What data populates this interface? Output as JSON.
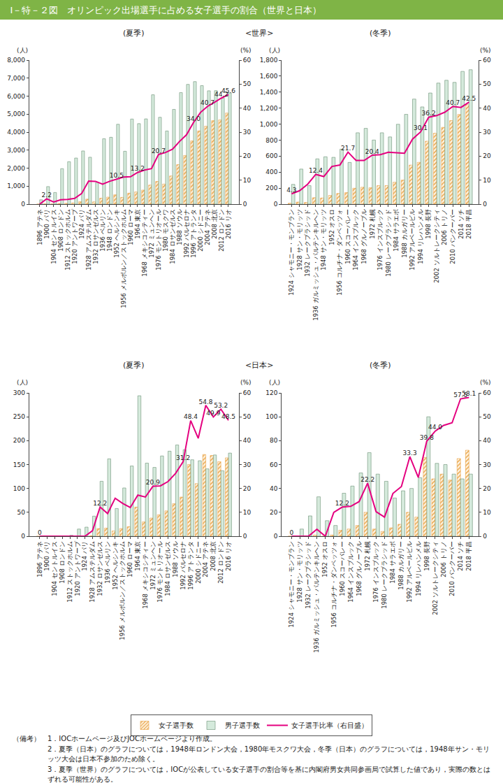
{
  "title": "Ⅰ－特－２図　オリンピック出場選手に占める女子選手の割合（世界と日本）",
  "section_labels": [
    "<世界>",
    "<日本>"
  ],
  "notes_label": "（備考）",
  "notes": [
    "1．IOCホームページ及びJOCホームページより作成。",
    "2．夏季（日本）のグラフについては，1948年ロンドン大会，1980年モスクワ大会，冬季（日本）のグラフについては，1948年サン・モリッツ大会は日本不参加のため除く。",
    "3．夏季（世界）のグラフについては，IOCが公表している女子選手の割合等を基に内閣府男女共同参画局で試算した値であり，実際の数とはずれる可能性がある。"
  ],
  "chart_data": [
    {
      "type": "bar",
      "title": "(夏季)",
      "y_label": "(人)",
      "y2_label": "(%)",
      "categories": [
        "1896 アテネ",
        "1900 パリ",
        "1904 セントルイス",
        "1908 ロンドン",
        "1912 ストックホルム",
        "1920 アントワープ",
        "1924 パリ",
        "1928 アムステルダム",
        "1932 ロサンゼルス",
        "1936 ベルリン",
        "1948 ロンドン",
        "1952 ヘルシンキ",
        "1956 メルボルン／ストックホルム",
        "1960 ローマ",
        "1964 東京",
        "1968 メキシコシティー",
        "1972 ミュンヘン",
        "1976 モントリオール",
        "1980 モスクワ",
        "1984 ロサンゼルス",
        "1988 ソウル",
        "1992 バルセロナ",
        "1996 アトランタ",
        "2000 シドニー",
        "2004 アテネ",
        "2008 北京",
        "2012 ロンドン",
        "2016 リオ"
      ],
      "series": [
        {
          "name": "女子選手数",
          "type": "bar",
          "color": "#e8a040",
          "marker": "hatched",
          "values": [
            0,
            22,
            6,
            37,
            48,
            65,
            135,
            277,
            126,
            331,
            390,
            519,
            376,
            611,
            678,
            781,
            1059,
            1260,
            1115,
            1566,
            2194,
            2704,
            3512,
            4069,
            4329,
            4637,
            4676,
            5059
          ]
        },
        {
          "name": "男子選手数",
          "type": "bar",
          "color": "#d5eadc",
          "values": [
            241,
            975,
            645,
            1971,
            2359,
            2561,
            2954,
            2606,
            1206,
            3632,
            3714,
            4436,
            2938,
            4727,
            4473,
            4735,
            6075,
            4824,
            4064,
            5263,
            6197,
            6652,
            6806,
            6582,
            6296,
            6305,
            5892,
            6178
          ]
        },
        {
          "name": "女子選手比率（右目盛）",
          "type": "line",
          "axis": "y2",
          "color": "#e4007f",
          "line_style": "solid",
          "values": [
            0,
            2.2,
            0.9,
            1.8,
            2.0,
            2.4,
            4.4,
            9.6,
            9.5,
            8.3,
            9.5,
            10.5,
            11.3,
            11.4,
            13.2,
            14.2,
            14.8,
            20.7,
            21.5,
            22.9,
            26.1,
            28.9,
            34.0,
            38.2,
            40.7,
            42.4,
            44.2,
            45.6
          ],
          "value_labels": [
            null,
            "2.2",
            null,
            null,
            null,
            null,
            null,
            null,
            null,
            null,
            null,
            "10.5",
            null,
            null,
            "13.2",
            null,
            null,
            "20.7",
            null,
            null,
            null,
            null,
            "34.0",
            null,
            "40.7",
            null,
            "44.2",
            "45.6"
          ]
        }
      ],
      "ylim": [
        0,
        8000
      ],
      "yticks": [
        0,
        {
          "value": 1000,
          "label": "1,000"
        },
        {
          "value": 2000,
          "label": "2,000"
        },
        {
          "value": 3000,
          "label": "3,000"
        },
        {
          "value": 4000,
          "label": "4,000"
        },
        {
          "value": 5000,
          "label": "5,000"
        },
        {
          "value": 6000,
          "label": "6,000"
        },
        {
          "value": 7000,
          "label": "7,000"
        },
        {
          "value": 8000,
          "label": "8,000"
        }
      ],
      "y2lim": [
        0,
        60
      ],
      "y2ticks": [
        0,
        10,
        20,
        30,
        40,
        50,
        60
      ],
      "grid": false,
      "data_labels": true,
      "legend": "bottom"
    },
    {
      "type": "bar",
      "title": "(冬季)",
      "y_label": "(人)",
      "y2_label": "(%)",
      "categories": [
        "1924 シャモニー・モンブラン",
        "1928 サン・モリッツ",
        "1932 レークプラシッド",
        "1936 ガルミッシュ・パルテンキルヘン",
        "1948 サン・モリッツ",
        "1952 オスロ",
        "1956 コルチナ・ダンペッツォ",
        "1960 スコーバレー",
        "1964 インスブルック",
        "1968 グルノーブル",
        "1972 札幌",
        "1976 インスブルック",
        "1980 レークプラシッド",
        "1984 サラエボ",
        "1988 カルガリー",
        "1992 アルベールビル",
        "1994 リレハンメル",
        "1998 長野",
        "2002 ソルトレークシティ",
        "2006 トリノ",
        "2010 バンクーバー",
        "2014 ソチ",
        "2018 平昌"
      ],
      "series": [
        {
          "name": "女子選手数",
          "type": "bar",
          "color": "#e8a040",
          "marker": "hatched",
          "values": [
            11,
            26,
            21,
            80,
            77,
            109,
            134,
            144,
            199,
            211,
            205,
            231,
            232,
            274,
            301,
            488,
            522,
            787,
            886,
            960,
            1044,
            1121,
            1242
          ]
        },
        {
          "name": "男子選手数",
          "type": "bar",
          "color": "#d5eadc",
          "values": [
            247,
            438,
            231,
            566,
            592,
            585,
            687,
            521,
            892,
            947,
            801,
            892,
            840,
            998,
            1122,
            1313,
            1215,
            1389,
            1513,
            1548,
            1522,
            1659,
            1680
          ]
        },
        {
          "name": "女子選手比率（右目盛）",
          "type": "line",
          "axis": "y2",
          "color": "#e4007f",
          "line_style": "solid",
          "values": [
            4.3,
            5.6,
            8.3,
            12.4,
            11.5,
            15.7,
            16.3,
            21.7,
            18.2,
            18.2,
            20.4,
            20.6,
            21.6,
            21.5,
            21.2,
            27.1,
            30.1,
            36.2,
            36.9,
            38.3,
            40.7,
            40.3,
            42.5
          ],
          "value_labels": [
            "4.3",
            null,
            null,
            "12.4",
            null,
            null,
            null,
            "21.7",
            null,
            null,
            "20.4",
            null,
            null,
            null,
            null,
            null,
            "30.1",
            "36.2",
            null,
            null,
            "40.7",
            null,
            "42.5"
          ]
        }
      ],
      "ylim": [
        0,
        1800
      ],
      "yticks": [
        0,
        200,
        400,
        600,
        800,
        {
          "value": 1000,
          "label": "1,000"
        },
        {
          "value": 1200,
          "label": "1,200"
        },
        {
          "value": 1400,
          "label": "1,400"
        },
        {
          "value": 1600,
          "label": "1,600"
        },
        {
          "value": 1800,
          "label": "1,800"
        }
      ],
      "y2lim": [
        0,
        60
      ],
      "y2ticks": [
        0,
        10,
        20,
        30,
        40,
        50,
        60
      ],
      "grid": false,
      "data_labels": true
    },
    {
      "type": "bar",
      "title": "(夏季)",
      "y_label": "(人)",
      "y2_label": "(%)",
      "categories": [
        "1896 アテネ",
        "1900 パリ",
        "1904 セントルイス",
        "1908 ロンドン",
        "1912 ストックホルム",
        "1920 アントワープ",
        "1924 パリ",
        "1928 アムステルダム",
        "1932 ロサンゼルス",
        "1936 ベルリン",
        "1952 ヘルシンキ",
        "1956 メルボルン／ストックホルム",
        "1960 ローマ",
        "1964 東京",
        "1968 メキシコシティー",
        "1972 ミュンヘン",
        "1976 モントリオール",
        "1984 ロサンゼルス",
        "1988 ソウル",
        "1992 バルセロナ",
        "1996 アトランタ",
        "2000 シドニー",
        "2004 アテネ",
        "2008 北京",
        "2012 ロンドン",
        "2016 リオ"
      ],
      "series": [
        {
          "name": "女子選手数",
          "type": "bar",
          "color": "#e8a040",
          "marker": "hatched",
          "values": [
            0,
            0,
            0,
            0,
            0,
            0,
            0,
            1,
            16,
            17,
            11,
            16,
            20,
            61,
            30,
            38,
            45,
            53,
            68,
            82,
            150,
            110,
            171,
            169,
            156,
            164
          ]
        },
        {
          "name": "男子選手数",
          "type": "bar",
          "color": "#d5eadc",
          "values": [
            0,
            0,
            0,
            0,
            2,
            15,
            19,
            42,
            115,
            162,
            58,
            101,
            147,
            294,
            153,
            144,
            168,
            178,
            191,
            181,
            160,
            158,
            141,
            170,
            137,
            174
          ]
        },
        {
          "name": "女子選手比率（右目盛）",
          "type": "line",
          "axis": "y2",
          "color": "#e4007f",
          "line_style": "solid",
          "values": [
            0,
            0,
            0,
            0,
            0,
            0,
            0,
            2.3,
            12.2,
            9.5,
            15.9,
            13.7,
            12.0,
            17.2,
            16.4,
            20.9,
            21.1,
            22.9,
            26.3,
            31.2,
            48.4,
            41.0,
            54.8,
            49.9,
            53.2,
            48.5
          ],
          "value_labels": [
            "0",
            null,
            null,
            null,
            null,
            null,
            null,
            null,
            "12.2",
            null,
            null,
            null,
            null,
            null,
            null,
            "20.9",
            null,
            null,
            null,
            "31.2",
            "48.4",
            null,
            "54.8",
            "49.9",
            "53.2",
            "48.5"
          ]
        }
      ],
      "ylim": [
        0,
        300
      ],
      "yticks": [
        0,
        50,
        100,
        150,
        200,
        250,
        300
      ],
      "y2lim": [
        0,
        60
      ],
      "y2ticks": [
        0,
        10,
        20,
        30,
        40,
        50,
        60
      ],
      "grid": false,
      "data_labels": true
    },
    {
      "type": "bar",
      "title": "(冬季)",
      "y_label": "(人)",
      "y2_label": "(%)",
      "categories": [
        "1924 シャモニー・モンブラン",
        "1928 サン・モリッツ",
        "1932 レークプラシッド",
        "1936 ガルミッシュ・パルテンキルヘン",
        "1952 オスロ",
        "1956 コルチナ・ダンペッツォ",
        "1960 スコーバレー",
        "1964 インスブルック",
        "1968 グルノーブル",
        "1972 札幌",
        "1976 インスブルック",
        "1980 レークプラシッド",
        "1984 サラエボ",
        "1988 カルガリー",
        "1992 アルベールビル",
        "1994 リレハンメル",
        "1998 長野",
        "2002 ソルトレークシティ",
        "2006 トリノ",
        "2010 バンクーバー",
        "2014 ソチ",
        "2018 平昌"
      ],
      "series": [
        {
          "name": "女子選手数",
          "type": "bar",
          "color": "#e8a040",
          "marker": "hatched",
          "values": [
            0,
            0,
            0,
            1,
            0,
            1,
            5,
            6,
            9,
            20,
            6,
            4,
            7,
            10,
            20,
            16,
            66,
            48,
            52,
            47,
            65,
            72
          ]
        },
        {
          "name": "男子選手数",
          "type": "bar",
          "color": "#d5eadc",
          "values": [
            0,
            6,
            17,
            33,
            13,
            9,
            36,
            42,
            53,
            70,
            52,
            46,
            32,
            38,
            40,
            49,
            100,
            61,
            60,
            52,
            48,
            52
          ]
        },
        {
          "name": "女子選手比率（右目盛）",
          "type": "line",
          "axis": "y2",
          "color": "#e4007f",
          "line_style": "solid",
          "values": [
            0,
            0,
            0,
            2.9,
            0,
            10.0,
            12.2,
            12.5,
            14.5,
            22.2,
            10.3,
            8.0,
            17.9,
            20.8,
            33.3,
            24.6,
            39.8,
            44.0,
            46.4,
            47.5,
            57.5,
            58.1
          ],
          "value_labels": [
            "0",
            null,
            null,
            null,
            null,
            null,
            "12.2",
            null,
            null,
            "22.2",
            null,
            null,
            null,
            null,
            "33.3",
            null,
            "39.8",
            "44.0",
            null,
            null,
            "57.5",
            "58.1"
          ]
        }
      ],
      "ylim": [
        0,
        120
      ],
      "yticks": [
        0,
        20,
        40,
        60,
        80,
        100,
        120
      ],
      "y2lim": [
        0,
        60
      ],
      "y2ticks": [
        0,
        10,
        20,
        30,
        40,
        50,
        60
      ],
      "grid": false,
      "data_labels": true
    }
  ]
}
